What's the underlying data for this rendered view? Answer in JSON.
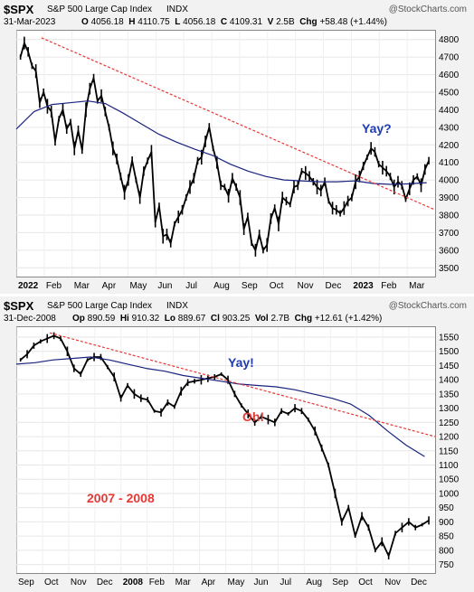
{
  "charts": {
    "top": {
      "symbol": "$SPX",
      "name": "S&P 500 Large Cap Index",
      "exchange": "INDX",
      "watermark": "@StockCharts.com",
      "date": "31-Mar-2023",
      "open_label": "O",
      "open": "4056.18",
      "high_label": "H",
      "high": "4110.75",
      "low_label": "L",
      "low": "4056.18",
      "close_label": "C",
      "close": "4109.31",
      "volume_label": "V",
      "volume": "2.5B",
      "chg_label": "Chg",
      "chg": "+58.48 (+1.44%)",
      "annotation": "Yay?"
    },
    "bottom": {
      "symbol": "$SPX",
      "name": "S&P 500 Large Cap Index",
      "exchange": "INDX",
      "watermark": "@StockCharts.com",
      "date": "31-Dec-2008",
      "open_label": "Op",
      "open": "890.59",
      "high_label": "Hi",
      "high": "910.32",
      "low_label": "Lo",
      "low": "889.67",
      "close_label": "Cl",
      "close": "903.25",
      "volume_label": "Vol",
      "volume": "2.7B",
      "chg_label": "Chg",
      "chg": "+12.61 (+1.42%)",
      "annotation_1": "Yay!",
      "annotation_2": "Oh!",
      "period_label": "2007 - 2008"
    }
  },
  "chart_data": [
    {
      "type": "line",
      "title": "$SPX S&P 500 Large Cap Index INDX",
      "x_labels": [
        "2022",
        "Feb",
        "Mar",
        "Apr",
        "May",
        "Jun",
        "Jul",
        "Aug",
        "Sep",
        "Oct",
        "Nov",
        "Dec",
        "2023",
        "Feb",
        "Mar"
      ],
      "y_ticks": [
        3500,
        3600,
        3700,
        3800,
        3900,
        4000,
        4100,
        4200,
        4300,
        4400,
        4500,
        4600,
        4700,
        4800
      ],
      "ylim": [
        3450,
        4850
      ],
      "series": [
        {
          "name": "price",
          "color": "#000000",
          "values": [
            4700,
            4780,
            4730,
            4650,
            4620,
            4440,
            4500,
            4420,
            4390,
            4220,
            4350,
            4400,
            4290,
            4330,
            4180,
            4280,
            4170,
            4400,
            4520,
            4580,
            4450,
            4480,
            4390,
            4300,
            4180,
            4120,
            4020,
            3930,
            4000,
            4110,
            4000,
            3900,
            4050,
            4110,
            4160,
            3760,
            3850,
            3680,
            3690,
            3640,
            3750,
            3790,
            3830,
            3900,
            3960,
            4010,
            4110,
            4130,
            4220,
            4300,
            4180,
            4100,
            3970,
            3960,
            3910,
            4010,
            3960,
            3900,
            3720,
            3790,
            3640,
            3600,
            3690,
            3600,
            3630,
            3780,
            3840,
            3750,
            3900,
            3880,
            3860,
            3960,
            3970,
            4050,
            4040,
            4020,
            3990,
            3960,
            3940,
            3990,
            3880,
            3840,
            3830,
            3810,
            3840,
            3880,
            3900,
            3990,
            4020,
            4080,
            4130,
            4180,
            4160,
            4090,
            4070,
            4050,
            4020,
            3960,
            3990,
            3970,
            3890,
            3950,
            4000,
            4020,
            3970,
            4060,
            4110
          ]
        },
        {
          "name": "200-day MA",
          "color": "#1a237e",
          "values": [
            4290,
            4390,
            4430,
            4440,
            4450,
            4435,
            4380,
            4320,
            4260,
            4215,
            4175,
            4140,
            4090,
            4050,
            4020,
            4000,
            3995,
            3990,
            3990,
            3995,
            3980,
            3975,
            3978,
            3985
          ]
        },
        {
          "name": "trendline",
          "color": "#e53935",
          "dashed": true,
          "values": [
            4810,
            3830
          ]
        }
      ]
    },
    {
      "type": "line",
      "title": "$SPX S&P 500 Large Cap Index INDX",
      "x_labels": [
        "Sep",
        "Oct",
        "Nov",
        "Dec",
        "2008",
        "Feb",
        "Mar",
        "Apr",
        "May",
        "Jun",
        "Jul",
        "Aug",
        "Sep",
        "Oct",
        "Nov",
        "Dec"
      ],
      "y_ticks": [
        750,
        800,
        850,
        900,
        950,
        1000,
        1050,
        1100,
        1150,
        1200,
        1250,
        1300,
        1350,
        1400,
        1450,
        1500,
        1550
      ],
      "ylim": [
        720,
        1585
      ],
      "series": [
        {
          "name": "price",
          "color": "#000000",
          "values": [
            1470,
            1490,
            1520,
            1535,
            1545,
            1555,
            1545,
            1500,
            1440,
            1420,
            1470,
            1480,
            1480,
            1445,
            1410,
            1335,
            1380,
            1350,
            1335,
            1330,
            1290,
            1285,
            1320,
            1305,
            1360,
            1390,
            1395,
            1400,
            1405,
            1410,
            1420,
            1400,
            1350,
            1310,
            1280,
            1250,
            1270,
            1260,
            1250,
            1290,
            1280,
            1300,
            1290,
            1260,
            1220,
            1160,
            1100,
            1000,
            900,
            950,
            850,
            920,
            880,
            800,
            830,
            780,
            860,
            880,
            900,
            880,
            890,
            905
          ]
        },
        {
          "name": "200-day MA",
          "color": "#1a237e",
          "values": [
            1455,
            1460,
            1470,
            1475,
            1480,
            1470,
            1455,
            1440,
            1430,
            1415,
            1405,
            1395,
            1385,
            1380,
            1375,
            1365,
            1350,
            1335,
            1315,
            1275,
            1220,
            1170,
            1130
          ]
        },
        {
          "name": "trendline",
          "color": "#e53935",
          "dashed": true,
          "values": [
            1565,
            1200
          ]
        }
      ]
    }
  ]
}
